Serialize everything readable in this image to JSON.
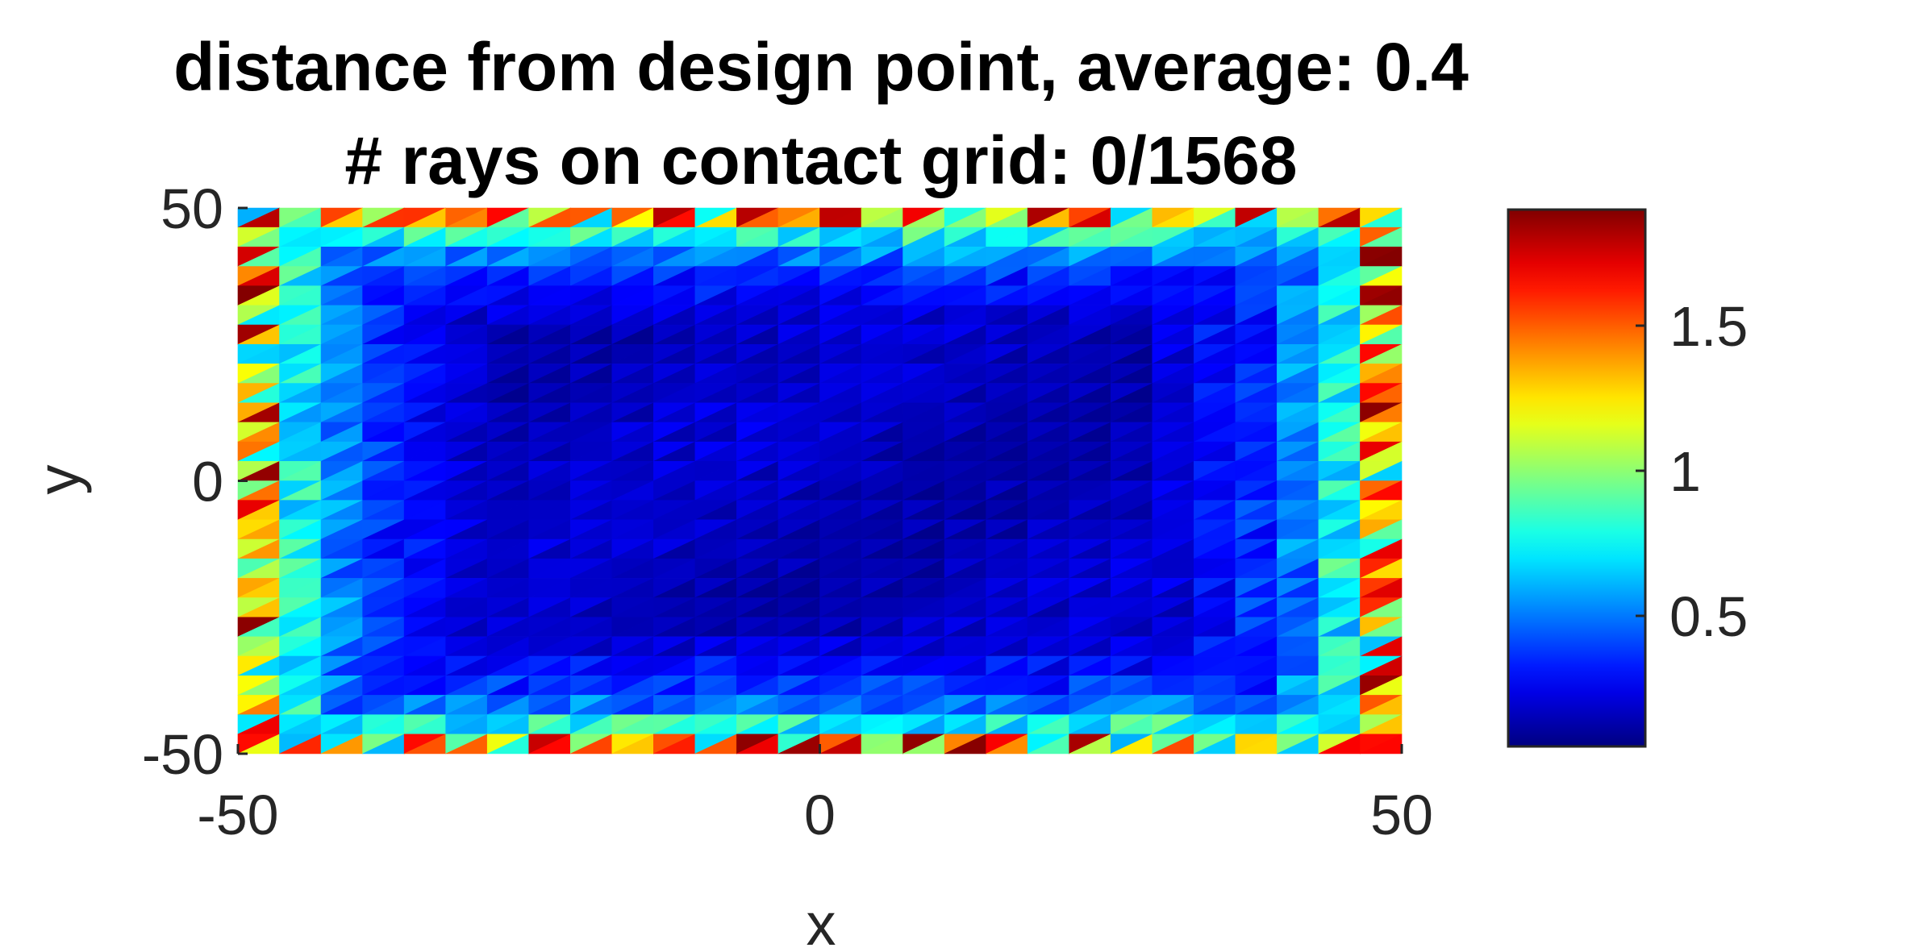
{
  "chart_data": {
    "type": "heatmap",
    "title": [
      "distance from design point, average: 0.4",
      "# rays on contact grid: 0/1568"
    ],
    "xlabel": "x",
    "ylabel": "y",
    "xlim": [
      -50,
      50
    ],
    "ylim": [
      -50,
      50
    ],
    "xticks": [
      -50,
      0,
      50
    ],
    "xtick_labels": [
      "-50",
      "0",
      "50"
    ],
    "yticks": [
      -50,
      0,
      50
    ],
    "ytick_labels": [
      "-50",
      "0",
      "50"
    ],
    "colormap": "jet",
    "color_range": [
      0.05,
      1.9
    ],
    "colorbar": {
      "ticks": [
        0.5,
        1,
        1.5
      ],
      "tick_labels": [
        "0.5",
        "1",
        "1.5"
      ],
      "placement": "right"
    },
    "grid": {
      "nx": 28,
      "ny": 28,
      "cell_shape": "two triangles per square cell"
    },
    "field_description": "values near 0.1-0.3 in the interior, rising toward 0.5-0.9 at the inner border rings and 1.0-1.9 on the outermost edge triangles",
    "field_profile": {
      "ring_index_from_edge": [
        0,
        1,
        2,
        3,
        4,
        5
      ],
      "typical_value": [
        1.3,
        0.75,
        0.5,
        0.35,
        0.28,
        0.2
      ]
    }
  }
}
